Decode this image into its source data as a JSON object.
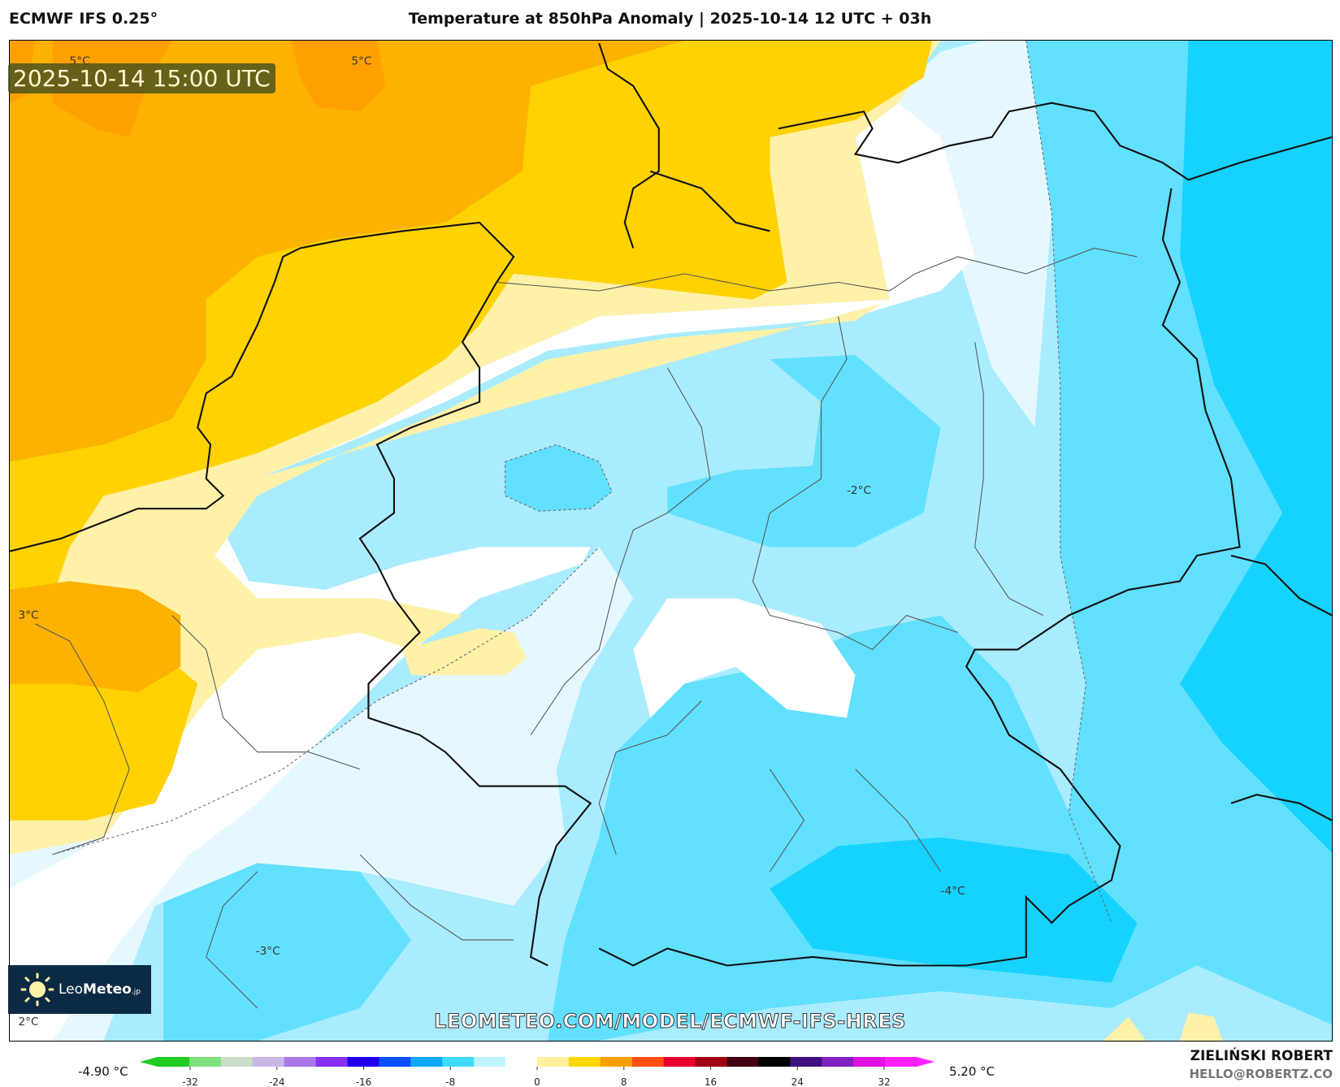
{
  "header": {
    "model": "ECMWF IFS 0.25°",
    "title": "Temperature at 850hPa Anomaly | 2025-10-14 12 UTC + 03h"
  },
  "map": {
    "valid_time": "2025-10-14 15:00 UTC",
    "contour_labels": [
      "5°C",
      "5°C",
      "3°C",
      "2°C",
      "-2°C",
      "-4°C",
      "-3°C"
    ],
    "colors": {
      "orange": "#fdb100",
      "dark_orange": "#ffa000",
      "yellow": "#ffd200",
      "light_yellow": "#fff1a8",
      "white": "#ffffff",
      "pale_blue": "#e6f8ff",
      "light_blue": "#a9ecff",
      "mid_blue": "#62e0ff",
      "deep_blue": "#16d2ff"
    }
  },
  "branding": {
    "logo_light": "Leo",
    "logo_bold": "Meteo",
    "logo_suffix": ".jp",
    "url": "LEOMETEO.COM/MODEL/ECMWF-IFS-HRES",
    "author": "ZIELIŃSKI ROBERT",
    "email": "HELLO@ROBERTZ.CO"
  },
  "colorbar": {
    "min_label": "-4.90 °C",
    "max_label": "5.20 °C",
    "ticks": [
      "-32",
      "-24",
      "-16",
      "-8",
      "0",
      "8",
      "16",
      "24",
      "32"
    ],
    "tick_values": [
      -32,
      -24,
      -16,
      -8,
      0,
      8,
      16,
      24,
      32
    ],
    "range": [
      -35,
      35
    ],
    "colors": [
      "#22cc22",
      "#7de07d",
      "#c8dcc8",
      "#c8b8e8",
      "#a878e8",
      "#8830f0",
      "#2200ee",
      "#0a50ff",
      "#10a8ff",
      "#40dcff",
      "#c0f4ff",
      "#ffffff",
      "#fff0a0",
      "#ffd800",
      "#ffa000",
      "#ff5010",
      "#e80030",
      "#a00010",
      "#400010",
      "#000000",
      "#401080",
      "#8020c0",
      "#e010e0",
      "#ff20ff"
    ]
  }
}
